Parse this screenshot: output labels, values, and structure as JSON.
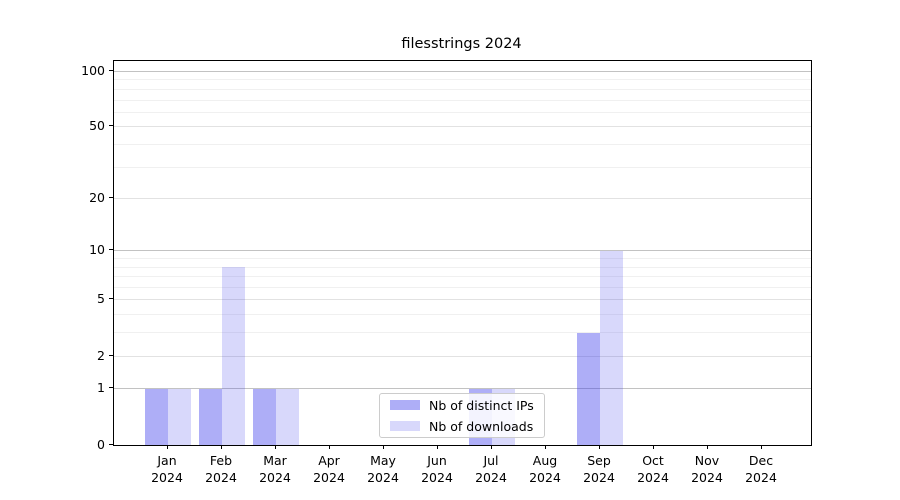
{
  "chart_data": {
    "type": "bar",
    "title": "filesstrings 2024",
    "categories": [
      "Jan",
      "Feb",
      "Mar",
      "Apr",
      "May",
      "Jun",
      "Jul",
      "Aug",
      "Sep",
      "Oct",
      "Nov",
      "Dec"
    ],
    "category_year": "2024",
    "series": [
      {
        "name": "Nb of distinct IPs",
        "color": "rgba(62,62,235,0.42)",
        "values": [
          1,
          1,
          1,
          0,
          0,
          0,
          1,
          0,
          3,
          0,
          0,
          0
        ]
      },
      {
        "name": "Nb of downloads",
        "color": "rgba(62,62,235,0.20)",
        "values": [
          1,
          8,
          1,
          0,
          0,
          0,
          1,
          0,
          10,
          0,
          0,
          0
        ]
      }
    ],
    "y_axis": {
      "scale": "log1p",
      "tick_values": [
        0,
        1,
        2,
        5,
        10,
        20,
        50,
        100
      ],
      "tick_labels": [
        "0",
        "1",
        "2",
        "5",
        "10",
        "20",
        "50",
        "100"
      ],
      "major_gridlines": [
        1,
        10,
        100
      ],
      "mid_gridlines": [
        2,
        5,
        20,
        50
      ],
      "minor_gridlines": [
        3,
        4,
        6,
        7,
        8,
        9,
        30,
        40,
        60,
        70,
        80,
        90
      ],
      "ylim": [
        0,
        113
      ]
    },
    "legend": {
      "position": "lower center"
    }
  }
}
